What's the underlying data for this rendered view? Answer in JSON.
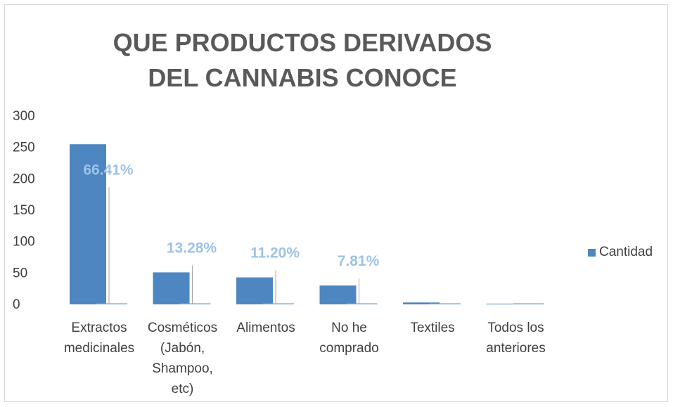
{
  "chart_data": {
    "type": "bar",
    "title": "QUE PRODUCTOS DERIVADOS DEL CANNABIS CONOCE",
    "categories": [
      [
        "Extractos",
        "medicinales"
      ],
      [
        "Cosméticos",
        "(Jabón,",
        "Shampoo,",
        "etc)"
      ],
      [
        "Alimentos"
      ],
      [
        "No he",
        "comprado"
      ],
      [
        "Textiles"
      ],
      [
        "Todos los",
        "anteriores"
      ]
    ],
    "series": [
      {
        "name": "Cantidad",
        "values": [
          255,
          51,
          43,
          30,
          3,
          1
        ],
        "color": "#4e86c2"
      }
    ],
    "data_labels": [
      "66.41%",
      "13.28%",
      "11.20%",
      "7.81%",
      "",
      ""
    ],
    "y_ticks": [
      "0",
      "50",
      "100",
      "150",
      "200",
      "250",
      "300"
    ],
    "ylim": [
      0,
      300
    ],
    "legend_position": "right",
    "grid": false
  }
}
